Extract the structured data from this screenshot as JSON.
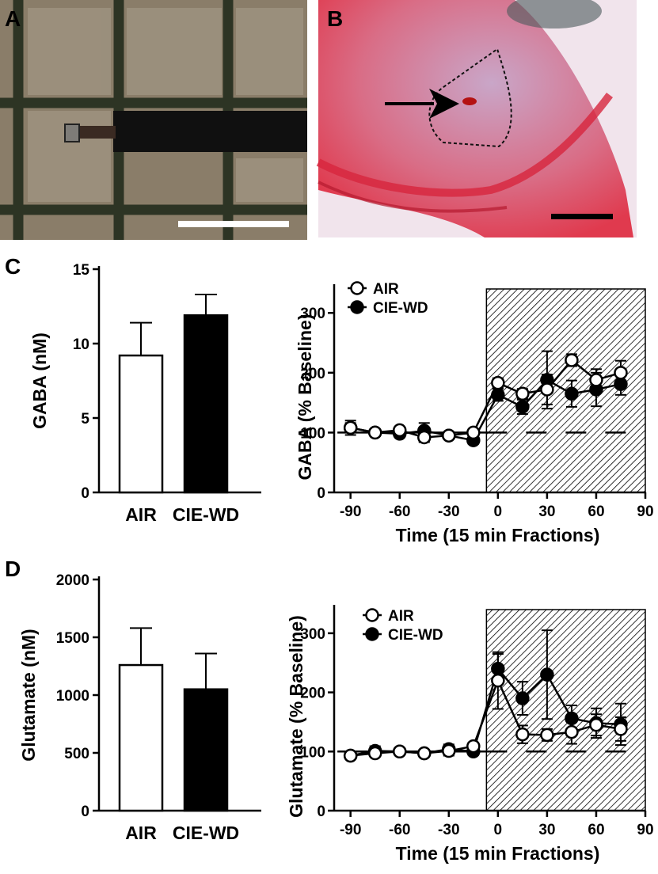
{
  "figure": {
    "panel_labels": [
      "A",
      "B",
      "C",
      "D"
    ]
  },
  "photos": {
    "A": {
      "icon": "microdialysis-probe-photo",
      "letter": "A"
    },
    "B": {
      "icon": "brain-section-histology",
      "letter": "B"
    }
  },
  "chart_data": [
    {
      "panel": "C",
      "type": "bar",
      "categories": [
        "AIR",
        "CIE-WD"
      ],
      "values": [
        9.2,
        11.9
      ],
      "errors": [
        2.2,
        1.4
      ],
      "colors": [
        "#ffffff",
        "#000000"
      ],
      "ylabel": "GABA (nM)",
      "ylim": [
        0,
        15
      ],
      "yticks": [
        0,
        5,
        10,
        15
      ],
      "ytick_labels": [
        "0",
        "5",
        "10",
        "15"
      ]
    },
    {
      "panel": "C",
      "type": "line",
      "xlabel": "Time (15 min Fractions)",
      "ylabel": "GABA  (%  Baseline)",
      "xlim": [
        -100,
        90
      ],
      "ylim": [
        0,
        340
      ],
      "xticks": [
        -90,
        -60,
        -30,
        0,
        30,
        60,
        90
      ],
      "xtick_labels": [
        "-90",
        "-60",
        "-30",
        "0",
        "30",
        "60",
        "90"
      ],
      "yticks": [
        0,
        100,
        200,
        300
      ],
      "ytick_labels": [
        "0",
        "100",
        "200",
        "300"
      ],
      "shaded_region": [
        -7,
        90
      ],
      "baseline": 100,
      "legend": "top-left",
      "x": [
        -90,
        -75,
        -60,
        -45,
        -30,
        -15,
        0,
        15,
        30,
        45,
        60,
        75
      ],
      "series": [
        {
          "name": "AIR",
          "marker": "open",
          "values": [
            108,
            100,
            104,
            92,
            95,
            100,
            183,
            165,
            172,
            221,
            188,
            200
          ],
          "errors": [
            8,
            5,
            5,
            8,
            5,
            5,
            8,
            8,
            25,
            10,
            18,
            20
          ]
        },
        {
          "name": "CIE-WD",
          "marker": "filled",
          "values": [
            108,
            100,
            98,
            103,
            95,
            87,
            163,
            143,
            188,
            165,
            172,
            181
          ],
          "errors": [
            12,
            6,
            6,
            13,
            5,
            6,
            10,
            12,
            48,
            22,
            28,
            18
          ]
        }
      ]
    },
    {
      "panel": "D",
      "type": "bar",
      "categories": [
        "AIR",
        "CIE-WD"
      ],
      "values": [
        1260,
        1050
      ],
      "errors": [
        320,
        310
      ],
      "colors": [
        "#ffffff",
        "#000000"
      ],
      "ylabel": "Glutamate (nM)",
      "ylim": [
        0,
        2000
      ],
      "yticks": [
        0,
        500,
        1000,
        1500,
        2000
      ],
      "ytick_labels": [
        "0",
        "500",
        "1000",
        "1500",
        "2000"
      ]
    },
    {
      "panel": "D",
      "type": "line",
      "xlabel": "Time (15 min Fractions)",
      "ylabel": "Glutamate  (%  Baseline)",
      "xlim": [
        -100,
        90
      ],
      "ylim": [
        0,
        340
      ],
      "xticks": [
        -90,
        -60,
        -30,
        0,
        30,
        60,
        90
      ],
      "xtick_labels": [
        "-90",
        "-60",
        "-30",
        "0",
        "30",
        "60",
        "90"
      ],
      "yticks": [
        0,
        100,
        200,
        300
      ],
      "ytick_labels": [
        "0",
        "100",
        "200",
        "300"
      ],
      "shaded_region": [
        -7,
        90
      ],
      "baseline": 100,
      "legend": "top-left",
      "x": [
        -90,
        -75,
        -60,
        -45,
        -30,
        -15,
        0,
        15,
        30,
        45,
        60,
        75
      ],
      "series": [
        {
          "name": "AIR",
          "marker": "open",
          "values": [
            93,
            97,
            100,
            97,
            101,
            109,
            220,
            129,
            128,
            133,
            145,
            138
          ],
          "errors": [
            5,
            5,
            5,
            5,
            8,
            6,
            48,
            15,
            10,
            20,
            18,
            20
          ]
        },
        {
          "name": "CIE-WD",
          "marker": "filled",
          "values": [
            93,
            101,
            100,
            97,
            104,
            100,
            240,
            190,
            230,
            156,
            148,
            146
          ],
          "errors": [
            6,
            8,
            6,
            6,
            8,
            6,
            25,
            28,
            75,
            22,
            25,
            35
          ]
        }
      ]
    }
  ]
}
